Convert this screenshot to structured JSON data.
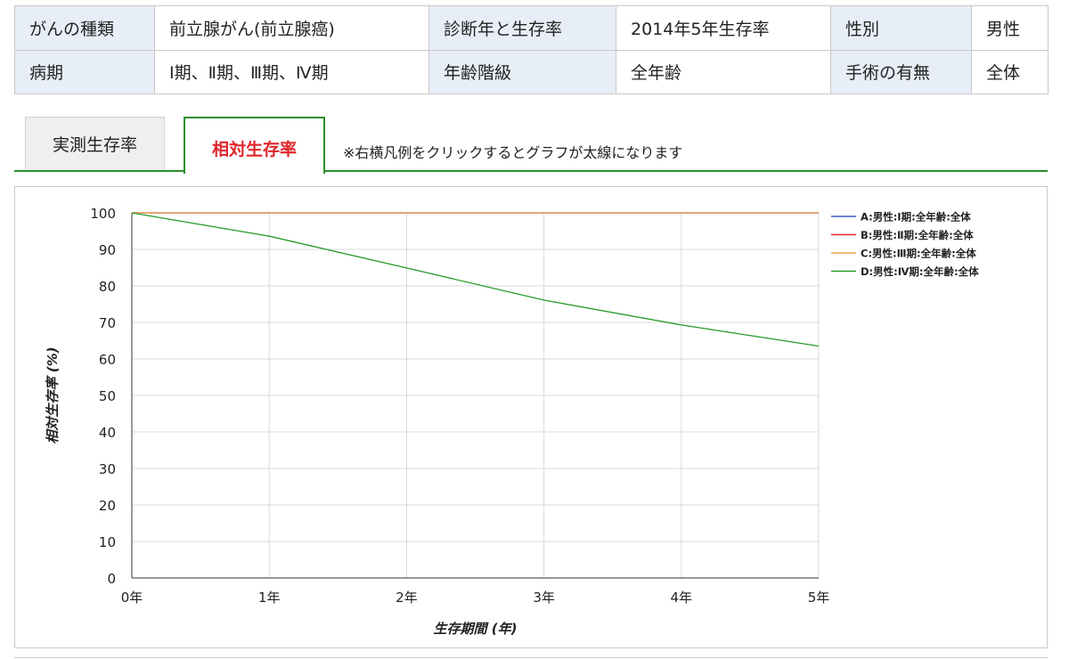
{
  "info": {
    "row1": [
      {
        "label": "がんの種類",
        "value": "前立腺がん(前立腺癌)"
      },
      {
        "label": "診断年と生存率",
        "value": "2014年5年生存率"
      },
      {
        "label": "性別",
        "value": "男性"
      }
    ],
    "row2": [
      {
        "label": "病期",
        "value": "Ⅰ期、Ⅱ期、Ⅲ期、Ⅳ期"
      },
      {
        "label": "年齢階級",
        "value": "全年齢"
      },
      {
        "label": "手術の有無",
        "value": "全体"
      }
    ]
  },
  "tabs": {
    "observed": "実測生存率",
    "relative": "相対生存率",
    "note": "※右横凡例をクリックするとグラフが太線になります"
  },
  "chart_data": {
    "type": "line",
    "xlabel": "生存期間 (年)",
    "ylabel": "相対生存率 (%)",
    "x": [
      "0年",
      "1年",
      "2年",
      "3年",
      "4年",
      "5年"
    ],
    "ylim": [
      0,
      100
    ],
    "yticks": [
      0,
      10,
      20,
      30,
      40,
      50,
      60,
      70,
      80,
      90,
      100
    ],
    "grid": true,
    "legend_position": "right",
    "series": [
      {
        "name": "A:男性:Ⅰ期:全年齢:全体",
        "color": "#3a5fcd",
        "values": [
          100,
          100,
          100,
          100,
          100,
          100
        ]
      },
      {
        "name": "B:男性:Ⅱ期:全年齢:全体",
        "color": "#e0262c",
        "values": [
          100,
          100,
          100,
          100,
          100,
          100
        ]
      },
      {
        "name": "C:男性:Ⅲ期:全年齢:全体",
        "color": "#f2a14a",
        "values": [
          100,
          100,
          100,
          100,
          100,
          100
        ]
      },
      {
        "name": "D:男性:Ⅳ期:全年齢:全体",
        "color": "#2a9a2a",
        "values": [
          100,
          93.6,
          84.9,
          76.1,
          69.3,
          63.5
        ]
      }
    ]
  }
}
